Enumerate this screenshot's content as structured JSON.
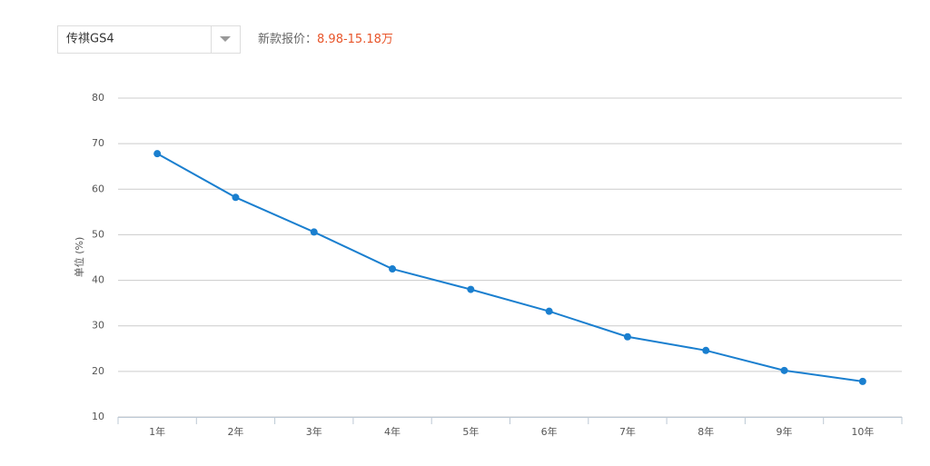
{
  "selector": {
    "selected": "传祺GS4"
  },
  "price": {
    "label": "新款报价：",
    "value": "8.98-15.18万"
  },
  "chart_data": {
    "type": "line",
    "y_label": "单位 (%)",
    "categories": [
      "1年",
      "2年",
      "3年",
      "4年",
      "5年",
      "6年",
      "7年",
      "8年",
      "9年",
      "10年"
    ],
    "values": [
      67.8,
      58.2,
      50.6,
      42.5,
      38.0,
      33.2,
      27.6,
      24.6,
      20.2,
      17.8
    ],
    "color": "#1a7fcf",
    "ylim": [
      10,
      80
    ],
    "yticks": [
      10,
      20,
      30,
      40,
      50,
      60,
      70,
      80
    ],
    "grid": true
  }
}
